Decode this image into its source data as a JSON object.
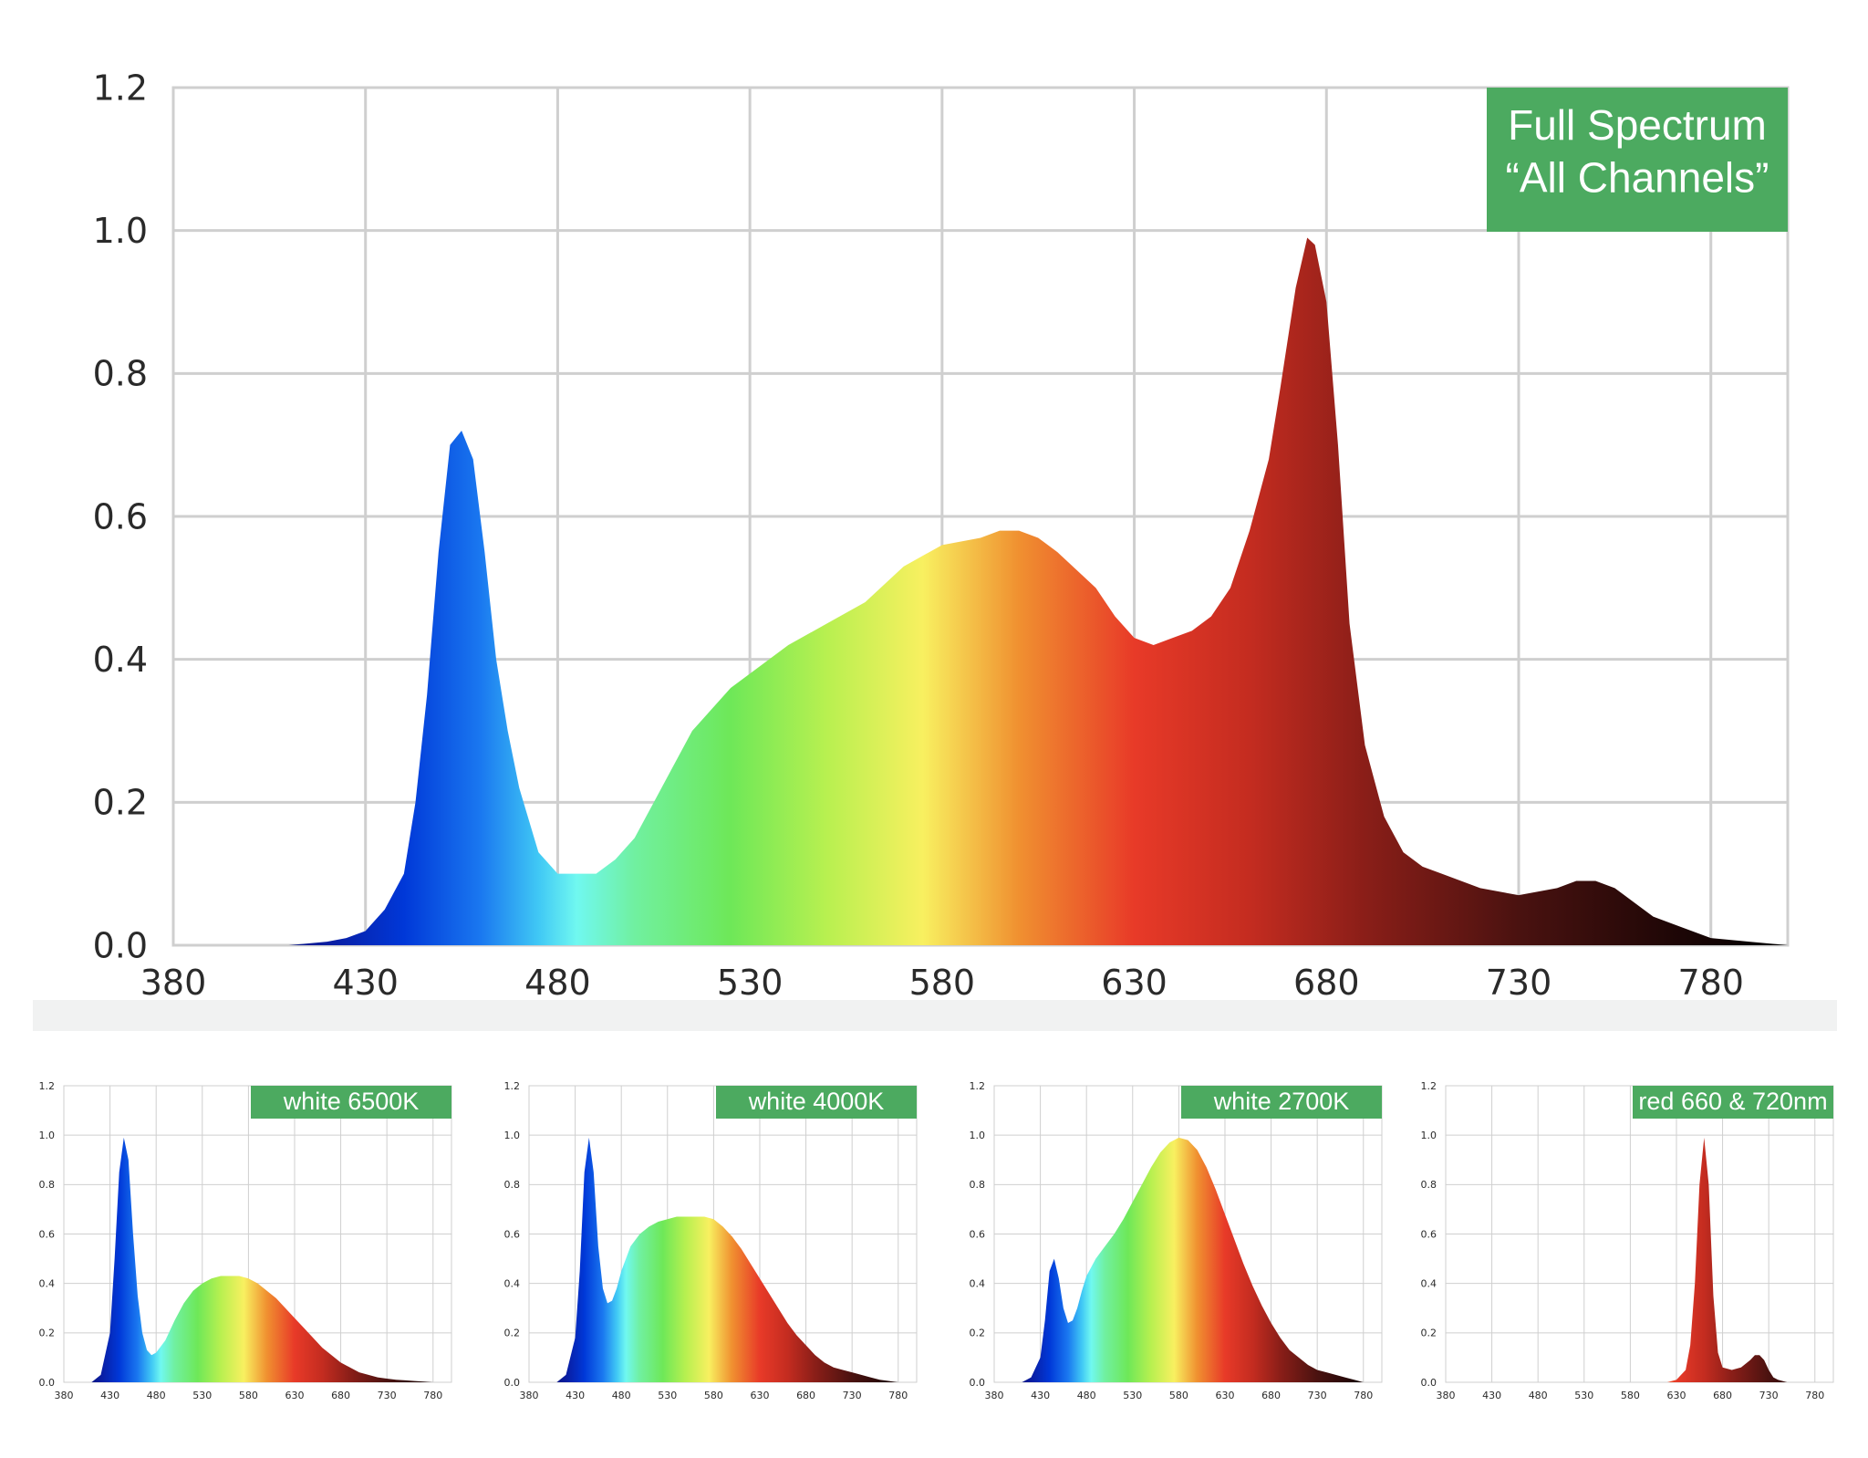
{
  "chart_data": [
    {
      "type": "area",
      "title": "",
      "badge": [
        "Full Spectrum",
        "“All Channels”"
      ],
      "xlabel": "",
      "ylabel": "",
      "xlim": [
        380,
        800
      ],
      "ylim": [
        0,
        1.2
      ],
      "xticks": [
        "380",
        "430",
        "480",
        "530",
        "580",
        "630",
        "680",
        "730",
        "780"
      ],
      "yticks": [
        "0.0",
        "0.2",
        "0.4",
        "0.6",
        "0.8",
        "1.0",
        "1.2"
      ],
      "grid": true,
      "fill": "visible-spectrum gradient",
      "series": [
        {
          "x": [
            380,
            400,
            410,
            420,
            425,
            430,
            435,
            440,
            443,
            446,
            449,
            452,
            455,
            458,
            461,
            464,
            467,
            470,
            475,
            480,
            485,
            490,
            495,
            500,
            505,
            510,
            515,
            520,
            525,
            530,
            540,
            550,
            560,
            570,
            580,
            590,
            595,
            600,
            605,
            610,
            620,
            625,
            630,
            635,
            640,
            645,
            650,
            655,
            660,
            665,
            668,
            672,
            675,
            677,
            680,
            683,
            686,
            690,
            695,
            700,
            705,
            710,
            720,
            730,
            740,
            745,
            750,
            755,
            760,
            765,
            770,
            780,
            790,
            800
          ],
          "y": [
            0,
            0,
            0,
            0.005,
            0.01,
            0.02,
            0.05,
            0.1,
            0.2,
            0.35,
            0.55,
            0.7,
            0.72,
            0.68,
            0.55,
            0.4,
            0.3,
            0.22,
            0.13,
            0.1,
            0.1,
            0.1,
            0.12,
            0.15,
            0.2,
            0.25,
            0.3,
            0.33,
            0.36,
            0.38,
            0.42,
            0.45,
            0.48,
            0.53,
            0.56,
            0.57,
            0.58,
            0.58,
            0.57,
            0.55,
            0.5,
            0.46,
            0.43,
            0.42,
            0.43,
            0.44,
            0.46,
            0.5,
            0.58,
            0.68,
            0.78,
            0.92,
            0.99,
            0.98,
            0.9,
            0.7,
            0.45,
            0.28,
            0.18,
            0.13,
            0.11,
            0.1,
            0.08,
            0.07,
            0.08,
            0.09,
            0.09,
            0.08,
            0.06,
            0.04,
            0.03,
            0.01,
            0.005,
            0
          ]
        }
      ]
    },
    {
      "type": "area",
      "title": "",
      "badge": "white 6500K",
      "xlim": [
        380,
        800
      ],
      "ylim": [
        0,
        1.2
      ],
      "xticks": [
        "380",
        "430",
        "480",
        "530",
        "580",
        "630",
        "680",
        "730",
        "780"
      ],
      "yticks": [
        "0.0",
        "0.2",
        "0.4",
        "0.6",
        "0.8",
        "1.0",
        "1.2"
      ],
      "grid": true,
      "series": [
        {
          "x": [
            380,
            410,
            420,
            430,
            435,
            440,
            445,
            450,
            455,
            460,
            465,
            470,
            475,
            480,
            490,
            500,
            510,
            520,
            530,
            540,
            550,
            560,
            570,
            580,
            590,
            600,
            610,
            620,
            630,
            640,
            650,
            660,
            670,
            680,
            690,
            700,
            710,
            720,
            730,
            740,
            750,
            760,
            770,
            780
          ],
          "y": [
            0,
            0,
            0.03,
            0.2,
            0.5,
            0.85,
            0.99,
            0.9,
            0.6,
            0.35,
            0.2,
            0.13,
            0.11,
            0.12,
            0.17,
            0.25,
            0.32,
            0.37,
            0.4,
            0.42,
            0.43,
            0.43,
            0.43,
            0.42,
            0.4,
            0.37,
            0.34,
            0.3,
            0.26,
            0.22,
            0.18,
            0.14,
            0.11,
            0.08,
            0.06,
            0.04,
            0.03,
            0.02,
            0.015,
            0.01,
            0.008,
            0.005,
            0.003,
            0
          ]
        }
      ]
    },
    {
      "type": "area",
      "title": "",
      "badge": "white 4000K",
      "xlim": [
        380,
        800
      ],
      "ylim": [
        0,
        1.2
      ],
      "xticks": [
        "380",
        "430",
        "480",
        "530",
        "580",
        "630",
        "680",
        "730",
        "780"
      ],
      "yticks": [
        "0.0",
        "0.2",
        "0.4",
        "0.6",
        "0.8",
        "1.0",
        "1.2"
      ],
      "grid": true,
      "series": [
        {
          "x": [
            380,
            410,
            420,
            430,
            435,
            440,
            445,
            450,
            455,
            460,
            465,
            470,
            475,
            480,
            490,
            500,
            510,
            520,
            530,
            540,
            550,
            560,
            570,
            580,
            590,
            600,
            610,
            620,
            630,
            640,
            650,
            660,
            670,
            680,
            690,
            700,
            710,
            720,
            730,
            740,
            750,
            760,
            770,
            780
          ],
          "y": [
            0,
            0,
            0.03,
            0.18,
            0.45,
            0.85,
            0.99,
            0.85,
            0.55,
            0.38,
            0.32,
            0.33,
            0.38,
            0.45,
            0.55,
            0.6,
            0.63,
            0.65,
            0.66,
            0.67,
            0.67,
            0.67,
            0.67,
            0.66,
            0.63,
            0.59,
            0.54,
            0.48,
            0.42,
            0.36,
            0.3,
            0.24,
            0.19,
            0.15,
            0.11,
            0.08,
            0.06,
            0.05,
            0.04,
            0.03,
            0.02,
            0.01,
            0.005,
            0
          ]
        }
      ]
    },
    {
      "type": "area",
      "title": "",
      "badge": "white 2700K",
      "xlim": [
        380,
        800
      ],
      "ylim": [
        0,
        1.2
      ],
      "xticks": [
        "380",
        "430",
        "480",
        "530",
        "580",
        "630",
        "680",
        "730",
        "780"
      ],
      "yticks": [
        "0.0",
        "0.2",
        "0.4",
        "0.6",
        "0.8",
        "1.0",
        "1.2"
      ],
      "grid": true,
      "series": [
        {
          "x": [
            380,
            410,
            420,
            430,
            435,
            440,
            445,
            450,
            455,
            460,
            465,
            470,
            475,
            480,
            490,
            500,
            510,
            520,
            530,
            540,
            550,
            560,
            570,
            580,
            590,
            600,
            610,
            620,
            630,
            640,
            650,
            660,
            670,
            680,
            690,
            700,
            710,
            720,
            730,
            740,
            750,
            760,
            770,
            780
          ],
          "y": [
            0,
            0,
            0.02,
            0.1,
            0.25,
            0.45,
            0.5,
            0.42,
            0.3,
            0.24,
            0.25,
            0.3,
            0.37,
            0.43,
            0.5,
            0.55,
            0.6,
            0.66,
            0.73,
            0.8,
            0.87,
            0.93,
            0.97,
            0.99,
            0.98,
            0.94,
            0.87,
            0.78,
            0.68,
            0.58,
            0.48,
            0.39,
            0.31,
            0.24,
            0.18,
            0.13,
            0.1,
            0.07,
            0.05,
            0.04,
            0.03,
            0.02,
            0.01,
            0
          ]
        }
      ]
    },
    {
      "type": "area",
      "title": "",
      "badge": "red 660 & 720nm",
      "xlim": [
        380,
        800
      ],
      "ylim": [
        0,
        1.2
      ],
      "xticks": [
        "380",
        "430",
        "480",
        "530",
        "580",
        "630",
        "680",
        "730",
        "780"
      ],
      "yticks": [
        "0.0",
        "0.2",
        "0.4",
        "0.6",
        "0.8",
        "1.0",
        "1.2"
      ],
      "grid": true,
      "series": [
        {
          "x": [
            380,
            620,
            630,
            640,
            645,
            650,
            655,
            660,
            665,
            670,
            675,
            680,
            690,
            700,
            710,
            715,
            720,
            725,
            730,
            735,
            740,
            750,
            760,
            780
          ],
          "y": [
            0,
            0,
            0.01,
            0.05,
            0.15,
            0.4,
            0.8,
            0.99,
            0.8,
            0.35,
            0.12,
            0.06,
            0.05,
            0.06,
            0.09,
            0.11,
            0.11,
            0.09,
            0.05,
            0.02,
            0.01,
            0,
            0,
            0
          ]
        }
      ]
    }
  ]
}
